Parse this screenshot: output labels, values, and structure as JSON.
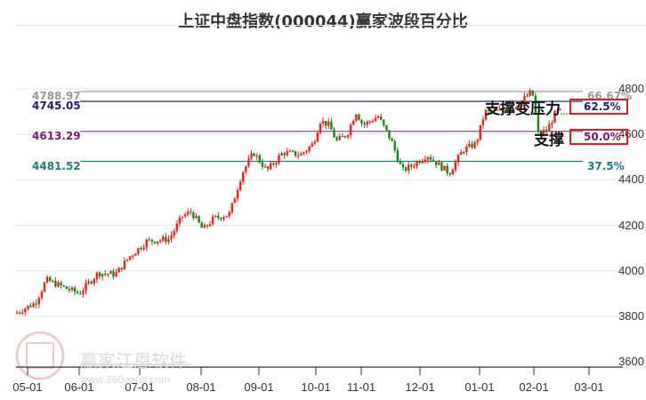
{
  "title": "上证中盘指数(000044)赢家波段百分比",
  "watermark": {
    "brand": "赢家江恩软件",
    "url": "www.360gann.com",
    "seal": [
      "江",
      "赢",
      "恩",
      "家"
    ]
  },
  "colors": {
    "up": "#ff1a1a",
    "down": "#138a13",
    "grid": "#e6e6e6",
    "box": "#e31b23"
  },
  "levels": [
    {
      "value": "4788.97",
      "pct": "66.67%",
      "color": "#999999",
      "boxed": false
    },
    {
      "value": "4745.05",
      "pct": "62.5%",
      "color": "#1c1c7a",
      "boxed": true
    },
    {
      "value": "4613.29",
      "pct": "50.0%",
      "color": "#7a1a7a",
      "boxed": true
    },
    {
      "value": "4481.52",
      "pct": "37.5%",
      "color": "#1a8080",
      "boxed": false
    }
  ],
  "annotations": {
    "support_to_resistance": "支撑变压力",
    "support": "支撑"
  },
  "chart_data": {
    "type": "candlestick",
    "title": "上证中盘指数(000044)赢家波段百分比",
    "xlabel": "",
    "ylabel": "",
    "ylim": [
      3600,
      4800
    ],
    "y_ticks": [
      3600,
      3800,
      4000,
      4200,
      4400,
      4600,
      4800
    ],
    "x_ticks": [
      "05-01",
      "06-01",
      "07-01",
      "08-01",
      "09-01",
      "10-01",
      "11-01",
      "12-01",
      "01-01",
      "02-01",
      "03-01"
    ],
    "grid": "horizontal",
    "horizontal_levels": [
      {
        "label": "66.67%",
        "value": 4788.97
      },
      {
        "label": "62.5%",
        "value": 4745.05
      },
      {
        "label": "50.0%",
        "value": 4613.29
      },
      {
        "label": "37.5%",
        "value": 4481.52
      }
    ],
    "approx_close_by_month": [
      {
        "date": "05-01",
        "close": 3820
      },
      {
        "date": "06-01",
        "close": 3900
      },
      {
        "date": "07-01",
        "close": 3990
      },
      {
        "date": "08-01",
        "close": 4150
      },
      {
        "date": "09-01",
        "close": 4480
      },
      {
        "date": "10-01",
        "close": 4560
      },
      {
        "date": "11-01",
        "close": 4660
      },
      {
        "date": "12-01",
        "close": 4430
      },
      {
        "date": "01-01",
        "close": 4560
      },
      {
        "date": "02-01",
        "close": 4660
      }
    ],
    "period_high": 4800,
    "period_low": 3810,
    "last_close_approx": 4690
  },
  "y_axis_labels": [
    "4800",
    "4600",
    "4400",
    "4200",
    "4000",
    "3800",
    "3600"
  ],
  "x_axis_labels": [
    "05-01",
    "06-01",
    "07-01",
    "08-01",
    "09-01",
    "10-01",
    "11-01",
    "12-01",
    "01-01",
    "02-01",
    "03-01"
  ]
}
